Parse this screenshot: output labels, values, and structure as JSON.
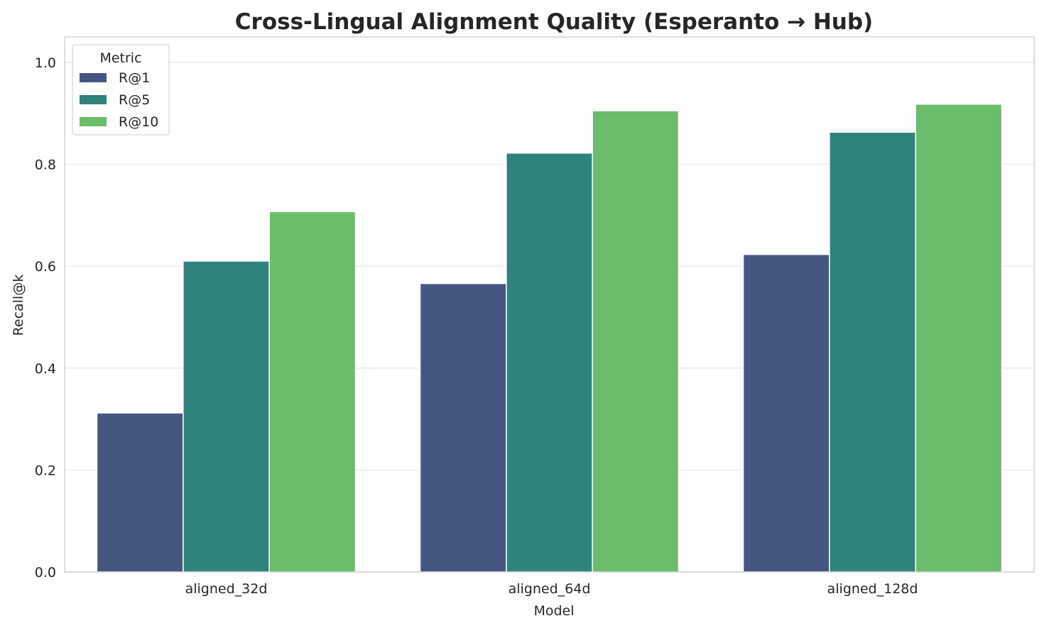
{
  "chart_data": {
    "type": "bar",
    "title": "Cross-Lingual Alignment Quality (Esperanto → Hub)",
    "xlabel": "Model",
    "ylabel": "Recall@k",
    "categories": [
      "aligned_32d",
      "aligned_64d",
      "aligned_128d"
    ],
    "series": [
      {
        "name": "R@1",
        "color": "#455681",
        "values": [
          0.312,
          0.566,
          0.623
        ]
      },
      {
        "name": "R@5",
        "color": "#2e837c",
        "values": [
          0.61,
          0.822,
          0.863
        ]
      },
      {
        "name": "R@10",
        "color": "#6bbc6b",
        "values": [
          0.707,
          0.905,
          0.918
        ]
      }
    ],
    "ylim": [
      0,
      1.05
    ],
    "yticks": [
      "0.0",
      "0.2",
      "0.4",
      "0.6",
      "0.8",
      "1.0"
    ],
    "grid": true,
    "legend": {
      "title": "Metric",
      "placement": "top-left"
    }
  }
}
